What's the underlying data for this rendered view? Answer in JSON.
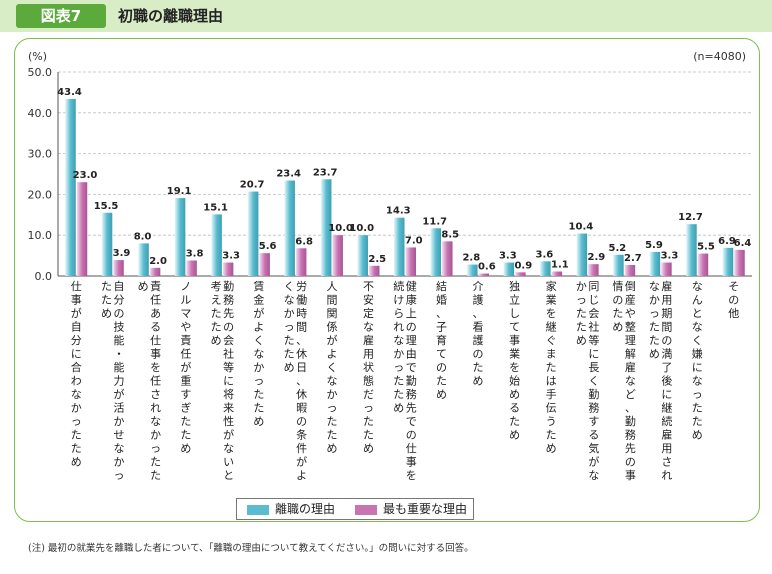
{
  "header": {
    "figure_label": "図表7",
    "title": "初職の離職理由"
  },
  "chart_data": {
    "type": "bar",
    "ylabel": "(%)",
    "sample_size": "(n=4080)",
    "ylim": [
      0,
      50
    ],
    "yticks": [
      "0.0",
      "10.0",
      "20.0",
      "30.0",
      "40.0",
      "50.0"
    ],
    "categories": [
      "仕事が自分に合わなかったため",
      "自分の技能・能力が活かせなかったため",
      "責任ある仕事を任されなかったため",
      "ノルマや責任が重すぎたため",
      "勤務先の会社等に将来性がないと考えたため",
      "賃金がよくなかったため",
      "労働時間、休日、休暇の条件がよくなかったため",
      "人間関係がよくなかったため",
      "不安定な雇用状態だったため",
      "健康上の理由で勤務先での仕事を続けられなかったため",
      "結婚、子育てのため",
      "介護、看護のため",
      "独立して事業を始めるため",
      "家業を継ぐまたは手伝うため",
      "同じ会社等に長く勤務する気がなかったため",
      "倒産や整理解雇など、勤務先の事情のため",
      "雇用期間の満了後に継続雇用されなかったため",
      "なんとなく嫌になったため",
      "その他"
    ],
    "series": [
      {
        "name": "離職の理由",
        "color": "#5bbccf",
        "values": [
          43.4,
          15.5,
          8.0,
          19.1,
          15.1,
          20.7,
          23.4,
          23.7,
          10.0,
          14.3,
          11.7,
          2.8,
          3.3,
          3.6,
          10.4,
          5.2,
          5.9,
          12.7,
          6.9
        ]
      },
      {
        "name": "最も重要な理由",
        "color": "#c874b2",
        "values": [
          23.0,
          3.9,
          2.0,
          3.8,
          3.3,
          5.6,
          6.8,
          10.0,
          2.5,
          7.0,
          8.5,
          0.6,
          0.9,
          1.1,
          2.9,
          2.7,
          3.3,
          5.5,
          6.4
        ]
      }
    ],
    "value_labels": [
      [
        "43.4",
        "15.5",
        "8.0",
        "19.1",
        "15.1",
        "20.7",
        "23.4",
        "23.7",
        "10.0",
        "14.3",
        "11.7",
        "2.8",
        "3.3",
        "3.6",
        "10.4",
        "5.2",
        "5.9",
        "12.7",
        "6.9"
      ],
      [
        "23.0",
        "3.9",
        "2.0",
        "3.8",
        "3.3",
        "5.6",
        "6.8",
        "10.0",
        "2.5",
        "7.0",
        "8.5",
        "0.6",
        "0.9",
        "1.1",
        "2.9",
        "2.7",
        "3.3",
        "5.5",
        "6.4"
      ]
    ],
    "grid": true,
    "legend_position": "bottom-center"
  },
  "note": "(注) 最初の就業先を離職した者について、「離職の理由について教えてください。」の問いに対する回答。"
}
